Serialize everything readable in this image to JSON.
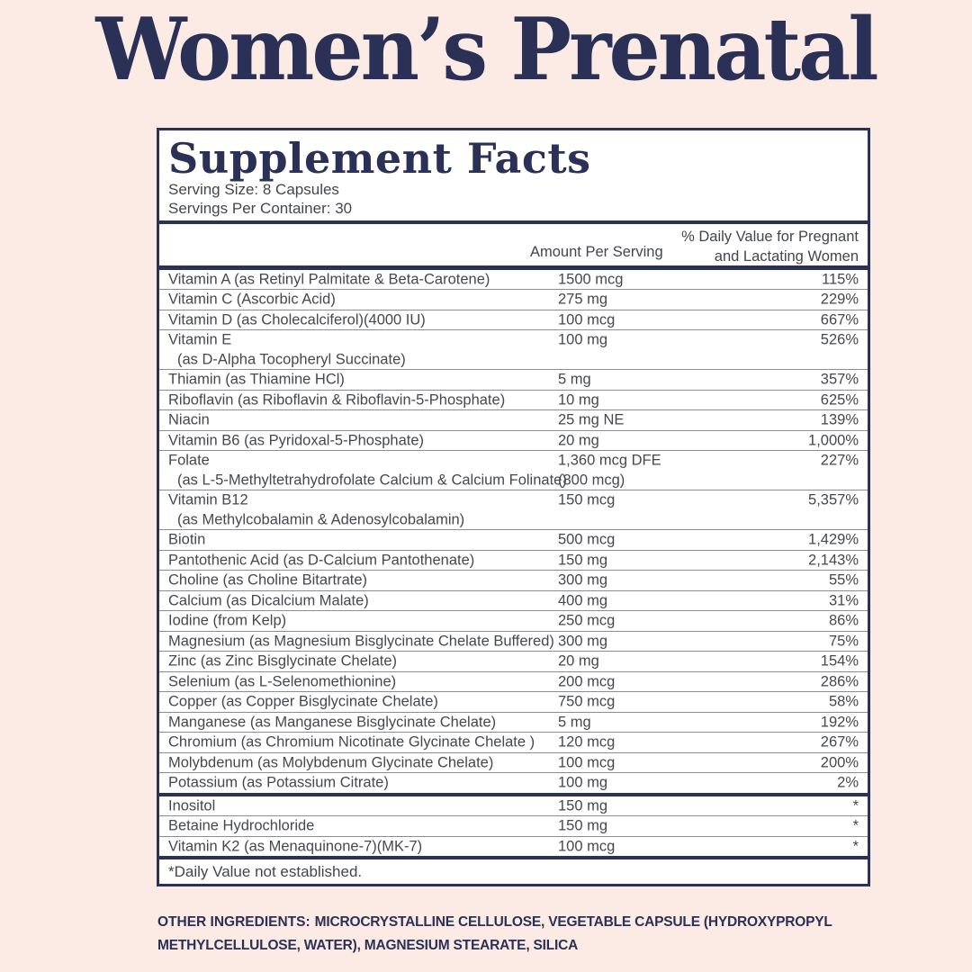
{
  "page_title": "Women’s Prenatal",
  "colors": {
    "background": "#fcebe4",
    "navy": "#2c3256",
    "panel_background": "#ffffff",
    "body_text_gray": "#45484c",
    "row_separator_gray": "#8d8d8d"
  },
  "panel": {
    "title": "Supplement Facts",
    "serving_size": "Serving Size: 8 Capsules",
    "servings_per_container": "Servings Per Container: 30",
    "col_amount": "Amount Per Serving",
    "col_dv_line1": "% Daily Value for Pregnant",
    "col_dv_line2": "and Lactating Women",
    "rows": [
      {
        "name": "Vitamin A (as Retinyl Palmitate & Beta-Carotene)",
        "amount": "1500 mcg",
        "dv": "115%"
      },
      {
        "name": "Vitamin C (Ascorbic Acid)",
        "amount": "275 mg",
        "dv": "229%"
      },
      {
        "name": "Vitamin D (as Cholecalciferol)(4000 IU)",
        "amount": "100 mcg",
        "dv": "667%"
      },
      {
        "name": "Vitamin E",
        "name2": "(as D-Alpha Tocopheryl Succinate)",
        "amount": "100 mg",
        "dv": "526%"
      },
      {
        "name": "Thiamin (as Thiamine HCl)",
        "amount": "5 mg",
        "dv": "357%"
      },
      {
        "name": "Riboflavin (as Riboflavin & Riboflavin-5-Phosphate)",
        "amount": "10 mg",
        "dv": "625%"
      },
      {
        "name": "Niacin",
        "amount": "25 mg NE",
        "dv": "139%"
      },
      {
        "name": "Vitamin B6 (as Pyridoxal-5-Phosphate)",
        "amount": "20 mg",
        "dv": "1,000%"
      },
      {
        "name": "Folate",
        "name2": "(as L-5-Methyltetrahydrofolate Calcium & Calcium Folinate)",
        "amount": "1,360 mcg DFE",
        "amount2": "(800 mcg)",
        "dv": "227%"
      },
      {
        "name": "Vitamin B12",
        "name2": "(as Methylcobalamin & Adenosylcobalamin)",
        "amount": "150 mcg",
        "dv": "5,357%"
      },
      {
        "name": "Biotin",
        "amount": "500 mcg",
        "dv": "1,429%"
      },
      {
        "name": "Pantothenic Acid (as D-Calcium Pantothenate)",
        "amount": "150 mg",
        "dv": "2,143%"
      },
      {
        "name": "Choline (as Choline Bitartrate)",
        "amount": "300 mg",
        "dv": "55%"
      },
      {
        "name": "Calcium (as Dicalcium Malate)",
        "amount": "400 mg",
        "dv": "31%"
      },
      {
        "name": "Iodine (from Kelp)",
        "amount": "250 mcg",
        "dv": "86%"
      },
      {
        "name": "Magnesium (as Magnesium Bisglycinate Chelate Buffered)",
        "amount": "300 mg",
        "dv": "75%"
      },
      {
        "name": "Zinc (as Zinc Bisglycinate Chelate)",
        "amount": "20 mg",
        "dv": "154%"
      },
      {
        "name": "Selenium (as L-Selenomethionine)",
        "amount": "200 mcg",
        "dv": "286%"
      },
      {
        "name": "Copper (as Copper Bisglycinate Chelate)",
        "amount": "750 mcg",
        "dv": "58%"
      },
      {
        "name": "Manganese (as Manganese Bisglycinate Chelate)",
        "amount": "5 mg",
        "dv": "192%"
      },
      {
        "name": "Chromium (as Chromium Nicotinate Glycinate Chelate )",
        "amount": "120 mcg",
        "dv": "267%"
      },
      {
        "name": "Molybdenum (as Molybdenum Glycinate Chelate)",
        "amount": "100 mcg",
        "dv": "200%"
      },
      {
        "name": "Potassium (as Potassium Citrate)",
        "amount": "100 mg",
        "dv": "2%",
        "divider": "thick"
      },
      {
        "name": "Inositol",
        "amount": "150 mg",
        "dv": "*"
      },
      {
        "name": "Betaine Hydrochloride",
        "amount": "150 mg",
        "dv": "*"
      },
      {
        "name": "Vitamin K2 (as Menaquinone-7)(MK-7)",
        "amount": "100 mcg",
        "dv": "*",
        "divider": "thick"
      }
    ],
    "footnote": "*Daily Value not established."
  },
  "other_ingredients": {
    "label": "OTHER INGREDIENTS:",
    "text": "MICROCRYSTALLINE CELLULOSE, VEGETABLE CAPSULE (HYDROXYPROPYL METHYLCELLULOSE, WATER), MAGNESIUM STEARATE, SILICA"
  }
}
